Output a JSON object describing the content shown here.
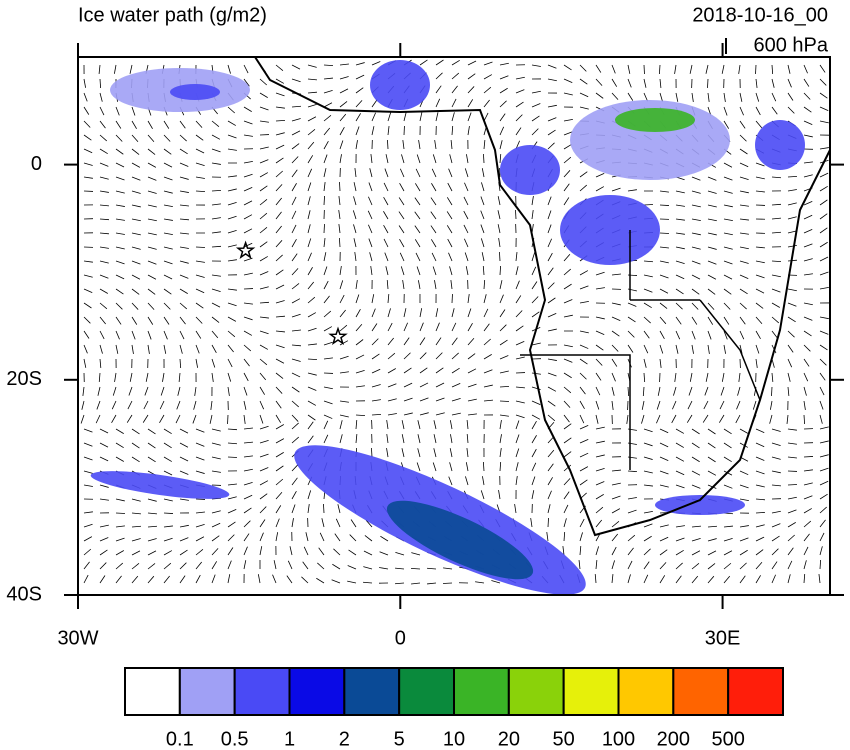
{
  "chart_data": {
    "type": "map",
    "title": "Ice water path (g/m2)",
    "date": "2018-10-16_00",
    "level": "600 hPa",
    "xlim": [
      -30,
      40
    ],
    "ylim": [
      -40,
      10
    ],
    "xticks": [
      {
        "value": -30,
        "label": "30W"
      },
      0,
      {
        "value": 30,
        "label": "30E"
      }
    ],
    "yticks": [
      0,
      {
        "value": -20,
        "label": "20S"
      },
      {
        "value": -40,
        "label": "40S"
      }
    ],
    "stars": [
      {
        "lon": -14.4,
        "lat": -8
      },
      {
        "lon": -5.8,
        "lat": -16
      }
    ],
    "colorbar": {
      "levels": [
        0.1,
        0.5,
        1,
        2,
        5,
        10,
        20,
        50,
        100,
        200,
        500
      ],
      "colors": [
        "#ffffff",
        "#a0a0f5",
        "#4a4af5",
        "#0a0ae6",
        "#0a4a96",
        "#0a8a3c",
        "#3ab426",
        "#8ad20a",
        "#e6f00a",
        "#ffc800",
        "#ff6400",
        "#ff1e0a"
      ]
    }
  }
}
